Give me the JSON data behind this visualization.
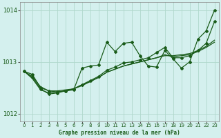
{
  "title": "Graphe pression niveau de la mer (hPa)",
  "background_color": "#d4f0ee",
  "plot_bg_color": "#d4f0ee",
  "grid_color": "#b0d8cc",
  "line_color": "#1a5c1a",
  "text_color": "#1a5c1a",
  "xlim": [
    -0.5,
    23.5
  ],
  "ylim": [
    1011.85,
    1014.15
  ],
  "yticks": [
    1012,
    1013,
    1014
  ],
  "xticks": [
    0,
    1,
    2,
    3,
    4,
    5,
    6,
    7,
    8,
    9,
    10,
    11,
    12,
    13,
    14,
    15,
    16,
    17,
    18,
    19,
    20,
    21,
    22,
    23
  ],
  "series1_x": [
    0,
    1,
    2,
    3,
    4,
    5,
    6,
    7,
    8,
    9,
    10,
    11,
    12,
    13,
    14,
    15,
    16,
    17,
    18,
    19,
    20,
    21,
    22,
    23
  ],
  "series1_y": [
    1012.82,
    1012.76,
    1012.5,
    1012.44,
    1012.42,
    1012.44,
    1012.46,
    1012.88,
    1012.92,
    1012.94,
    1013.38,
    1013.2,
    1013.36,
    1013.38,
    1013.12,
    1012.92,
    1012.9,
    1013.22,
    1013.06,
    1012.88,
    1013.0,
    1013.44,
    1013.6,
    1014.0
  ],
  "series2_x": [
    0,
    1,
    2,
    3,
    4,
    5,
    6,
    7,
    8,
    9,
    10,
    11,
    12,
    13,
    14,
    15,
    16,
    17,
    18,
    19,
    20,
    21,
    22,
    23
  ],
  "series2_y": [
    1012.82,
    1012.72,
    1012.52,
    1012.44,
    1012.44,
    1012.46,
    1012.48,
    1012.56,
    1012.62,
    1012.7,
    1012.8,
    1012.86,
    1012.92,
    1012.96,
    1013.0,
    1013.04,
    1013.08,
    1013.12,
    1013.12,
    1013.14,
    1013.16,
    1013.22,
    1013.3,
    1013.42
  ],
  "series3_x": [
    0,
    1,
    2,
    3,
    4,
    5,
    6,
    7,
    8,
    9,
    10,
    11,
    12,
    13,
    14,
    15,
    16,
    17,
    18,
    19,
    20,
    21,
    22,
    23
  ],
  "series3_y": [
    1012.82,
    1012.68,
    1012.46,
    1012.4,
    1012.42,
    1012.44,
    1012.48,
    1012.54,
    1012.62,
    1012.7,
    1012.8,
    1012.86,
    1012.92,
    1012.96,
    1013.0,
    1013.04,
    1013.08,
    1013.14,
    1013.1,
    1013.12,
    1013.14,
    1013.2,
    1013.28,
    1013.38
  ],
  "series4_x": [
    0,
    1,
    2,
    3,
    4,
    5,
    6,
    7,
    8,
    9,
    10,
    11,
    12,
    13,
    14,
    15,
    16,
    17,
    18,
    19,
    20,
    21,
    22,
    23
  ],
  "series4_y": [
    1012.82,
    1012.7,
    1012.48,
    1012.38,
    1012.4,
    1012.44,
    1012.48,
    1012.56,
    1012.64,
    1012.72,
    1012.84,
    1012.9,
    1012.98,
    1013.0,
    1013.04,
    1013.08,
    1013.18,
    1013.28,
    1013.08,
    1013.08,
    1013.12,
    1013.22,
    1013.36,
    1013.78
  ],
  "marker_style": "D",
  "marker_size": 2.0,
  "line_width": 0.9
}
